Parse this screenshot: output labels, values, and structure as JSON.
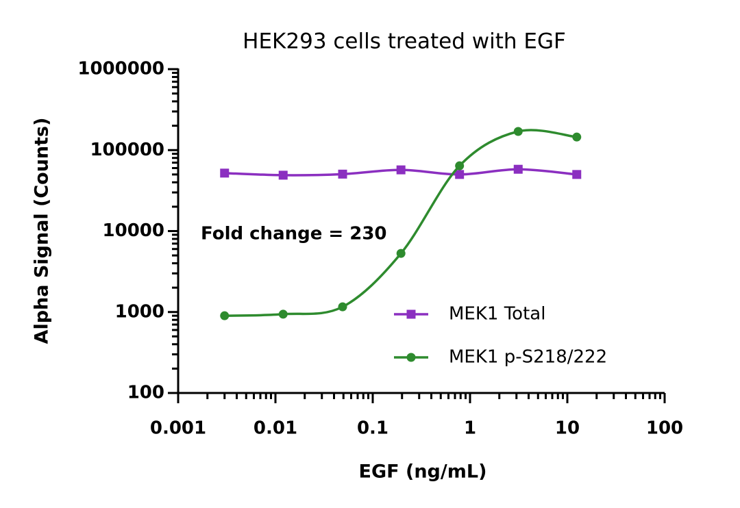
{
  "chart_data": {
    "type": "line",
    "title": "HEK293 cells treated with EGF",
    "xlabel": "EGF (ng/mL)",
    "ylabel": "Alpha Signal (Counts)",
    "xscale": "log",
    "yscale": "log",
    "x": [
      0.003,
      0.012,
      0.049,
      0.195,
      0.78,
      3.125,
      12.5
    ],
    "series": [
      {
        "name": "MEK1 Total",
        "color": "#8b2fc0",
        "marker": "square",
        "values": [
          52000,
          49000,
          50500,
          57000,
          50000,
          58000,
          50000
        ]
      },
      {
        "name": "MEK1 p-S218/222",
        "color": "#2e8b2e",
        "marker": "circle",
        "values": [
          900,
          940,
          1160,
          5300,
          64000,
          170000,
          145000
        ]
      }
    ],
    "xlim": [
      0.001,
      100
    ],
    "xticks": [
      0.001,
      0.01,
      0.1,
      1,
      10,
      100
    ],
    "ylim": [
      100,
      1000000
    ],
    "yticks": [
      100,
      1000,
      10000,
      100000,
      1000000
    ],
    "annotation": {
      "text": "Fold change = 230",
      "color": "#2e8b2e"
    },
    "legend": "lower right"
  }
}
